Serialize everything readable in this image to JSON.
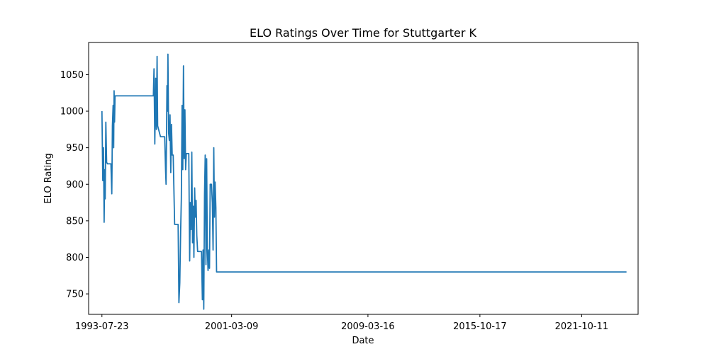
{
  "chart_data": {
    "type": "line",
    "title": "ELO Ratings Over Time for Stuttgarter K",
    "xlabel": "Date",
    "ylabel": "ELO Rating",
    "grid": false,
    "legend": "none",
    "xlim": [
      "1992-10-10",
      "2025-02-05"
    ],
    "ylim": [
      722,
      1094
    ],
    "x_ticks": [
      "1993-07-23",
      "2001-03-09",
      "2009-03-16",
      "2015-10-17",
      "2021-10-11"
    ],
    "y_ticks": [
      750,
      800,
      850,
      900,
      950,
      1000,
      1050
    ],
    "series": [
      {
        "name": "",
        "color": "#1f77b4",
        "points": [
          [
            "1993-07-23",
            1000
          ],
          [
            "1993-08-10",
            905
          ],
          [
            "1993-08-25",
            950
          ],
          [
            "1993-09-08",
            848
          ],
          [
            "1993-09-20",
            920
          ],
          [
            "1993-10-01",
            880
          ],
          [
            "1993-10-15",
            985
          ],
          [
            "1993-11-01",
            930
          ],
          [
            "1993-11-20",
            928
          ],
          [
            "1994-02-01",
            928
          ],
          [
            "1994-02-20",
            887
          ],
          [
            "1994-03-05",
            980
          ],
          [
            "1994-03-20",
            1008
          ],
          [
            "1994-04-01",
            950
          ],
          [
            "1994-04-10",
            1028
          ],
          [
            "1994-04-20",
            985
          ],
          [
            "1994-05-01",
            1021
          ],
          [
            "1996-08-01",
            1021
          ],
          [
            "1996-08-15",
            1058
          ],
          [
            "1996-09-01",
            955
          ],
          [
            "1996-09-20",
            1045
          ],
          [
            "1996-10-05",
            975
          ],
          [
            "1996-10-20",
            1075
          ],
          [
            "1996-11-01",
            980
          ],
          [
            "1997-01-01",
            965
          ],
          [
            "1997-04-01",
            965
          ],
          [
            "1997-04-20",
            920
          ],
          [
            "1997-05-01",
            900
          ],
          [
            "1997-05-20",
            1035
          ],
          [
            "1997-06-01",
            1000
          ],
          [
            "1997-06-10",
            1078
          ],
          [
            "1997-06-25",
            970
          ],
          [
            "1997-07-10",
            960
          ],
          [
            "1997-07-25",
            995
          ],
          [
            "1997-08-10",
            916
          ],
          [
            "1997-08-25",
            982
          ],
          [
            "1997-09-10",
            940
          ],
          [
            "1997-10-01",
            940
          ],
          [
            "1997-11-01",
            845
          ],
          [
            "1998-01-15",
            845
          ],
          [
            "1998-02-01",
            738
          ],
          [
            "1998-02-20",
            765
          ],
          [
            "1998-03-10",
            835
          ],
          [
            "1998-03-25",
            880
          ],
          [
            "1998-04-10",
            1008
          ],
          [
            "1998-04-25",
            920
          ],
          [
            "1998-05-10",
            1062
          ],
          [
            "1998-05-25",
            935
          ],
          [
            "1998-06-10",
            1002
          ],
          [
            "1998-06-25",
            920
          ],
          [
            "1998-07-10",
            942
          ],
          [
            "1998-09-01",
            942
          ],
          [
            "1998-09-20",
            795
          ],
          [
            "1998-10-05",
            875
          ],
          [
            "1998-10-20",
            838
          ],
          [
            "1998-11-05",
            944
          ],
          [
            "1998-11-20",
            820
          ],
          [
            "1998-12-05",
            870
          ],
          [
            "1998-12-20",
            800
          ],
          [
            "1999-01-05",
            895
          ],
          [
            "1999-01-20",
            855
          ],
          [
            "1999-02-05",
            878
          ],
          [
            "1999-02-20",
            830
          ],
          [
            "1999-03-10",
            808
          ],
          [
            "1999-06-01",
            808
          ],
          [
            "1999-06-20",
            742
          ],
          [
            "1999-07-05",
            810
          ],
          [
            "1999-07-20",
            729
          ],
          [
            "1999-08-05",
            885
          ],
          [
            "1999-08-20",
            940
          ],
          [
            "1999-09-05",
            790
          ],
          [
            "1999-09-20",
            935
          ],
          [
            "1999-10-05",
            810
          ],
          [
            "1999-10-20",
            782
          ],
          [
            "1999-11-05",
            810
          ],
          [
            "1999-11-20",
            785
          ],
          [
            "1999-12-05",
            900
          ],
          [
            "2000-01-01",
            900
          ],
          [
            "2000-01-20",
            875
          ],
          [
            "2000-02-05",
            810
          ],
          [
            "2000-02-20",
            950
          ],
          [
            "2000-03-05",
            855
          ],
          [
            "2000-03-20",
            903
          ],
          [
            "2000-04-05",
            868
          ],
          [
            "2000-04-20",
            780
          ],
          [
            "2024-06-01",
            780
          ]
        ]
      }
    ]
  }
}
